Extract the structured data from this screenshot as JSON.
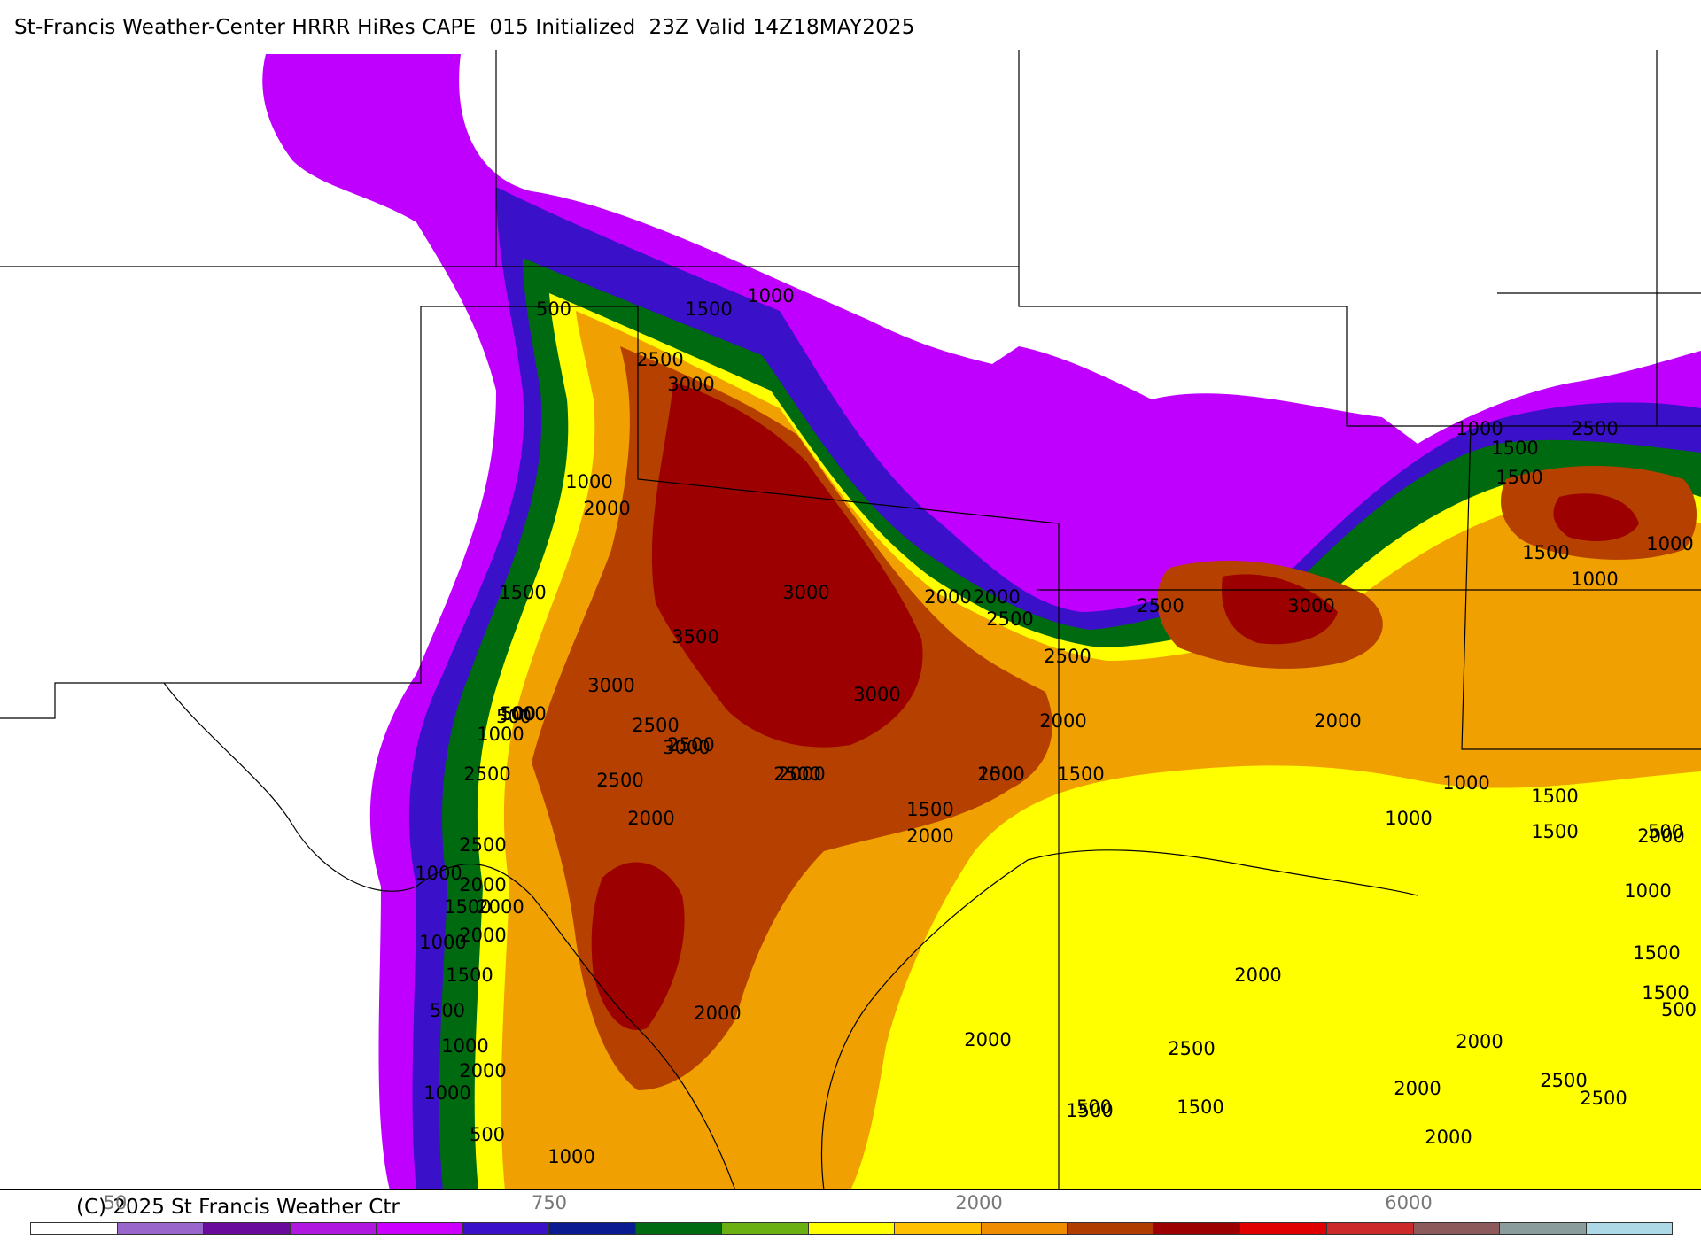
{
  "title": "St-Francis Weather-Center HRRR HiRes CAPE  015 Initialized  23Z Valid 14Z18MAY2025",
  "copyright": "(C) 2025 St Francis Weather Ctr",
  "colorbar": {
    "colors": [
      "#ffffff",
      "#9966cc",
      "#6a0a9c",
      "#b018e0",
      "#cc00ff",
      "#3a10c8",
      "#0a1a90",
      "#006a10",
      "#6ab010",
      "#ffff00",
      "#ffc000",
      "#ef8c00",
      "#b03c00",
      "#9c0000",
      "#e00000",
      "#cc2a2a",
      "#8c5a5a",
      "#8a9c9c",
      "#add8e6"
    ],
    "tick_labels": [
      "50",
      "750",
      "2000",
      "6000"
    ]
  },
  "fields": {
    "colors": {
      "500": "#bf00ff",
      "750": "#3a10c8",
      "1000": "#006a10",
      "1500": "#ffff00",
      "2000": "#f0a000",
      "2500": "#b54000",
      "3000": "#9c0000"
    }
  },
  "contour_labels": [
    "500",
    "1500",
    "1000",
    "2500",
    "3000",
    "1000",
    "2000",
    "1500",
    "3000",
    "3500",
    "3000",
    "2000",
    "2500",
    "2000",
    "2500",
    "1000",
    "500",
    "3000",
    "2500",
    "500",
    "1000",
    "2500",
    "3000",
    "2500",
    "2500",
    "2000",
    "2000",
    "1500",
    "1500",
    "2000",
    "2500",
    "2000",
    "2000",
    "2000",
    "2500",
    "1000",
    "1500",
    "2000",
    "1000",
    "1500",
    "500",
    "1000",
    "2000",
    "1000",
    "500",
    "1000",
    "1500",
    "2000",
    "2000",
    "3000",
    "2500",
    "2000",
    "1000",
    "1000",
    "500",
    "1000",
    "1500",
    "1500",
    "1500",
    "1500",
    "2000",
    "2000",
    "2500",
    "500",
    "2000",
    "1500",
    "1500",
    "2000",
    "2000",
    "2500",
    "2500",
    "500",
    "1000",
    "1500",
    "1500",
    "2000",
    "2500",
    "1000",
    "1500",
    "1000"
  ]
}
